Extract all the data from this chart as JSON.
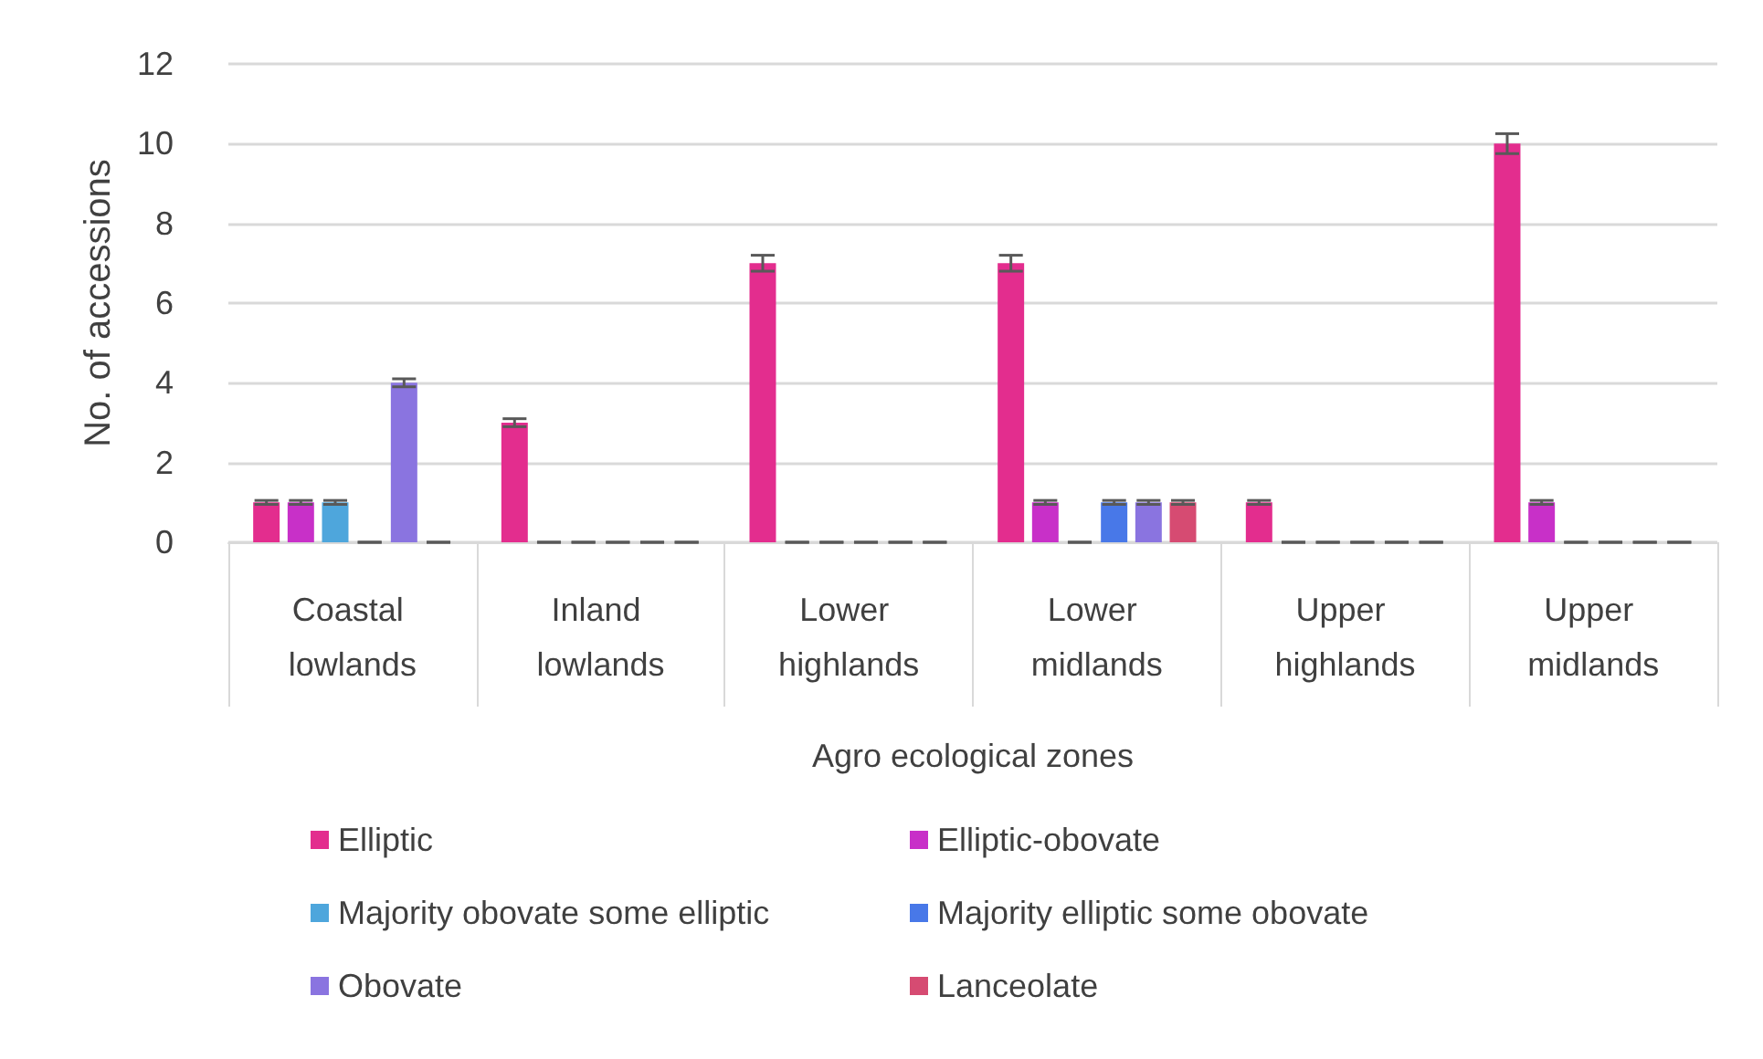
{
  "chart_data": {
    "type": "bar",
    "xlabel": "Agro ecological zones",
    "ylabel": "No. of accessions",
    "categories": [
      "Coastal lowlands",
      "Inland lowlands",
      "Lower highlands",
      "Lower midlands",
      "Upper highlands",
      "Upper midlands"
    ],
    "series": [
      {
        "name": "Elliptic",
        "color": "#e32d8e",
        "values": [
          1,
          3,
          7,
          7,
          1,
          10
        ],
        "errors": [
          0.05,
          0.1,
          0.2,
          0.2,
          0.05,
          0.25
        ]
      },
      {
        "name": "Elliptic-obovate",
        "color": "#c830c8",
        "values": [
          1,
          0,
          0,
          1,
          0,
          1
        ],
        "errors": [
          0.05,
          0,
          0,
          0.05,
          0,
          0.05
        ]
      },
      {
        "name": "Majority obovate some elliptic",
        "color": "#4ea6dc",
        "values": [
          1,
          0,
          0,
          0,
          0,
          0
        ],
        "errors": [
          0.05,
          0,
          0,
          0,
          0,
          0
        ]
      },
      {
        "name": "Majority elliptic some obovate",
        "color": "#4878e8",
        "values": [
          0,
          0,
          0,
          1,
          0,
          0
        ],
        "errors": [
          0,
          0,
          0,
          0.05,
          0,
          0
        ]
      },
      {
        "name": "Obovate",
        "color": "#8a74e0",
        "values": [
          4,
          0,
          0,
          1,
          0,
          0
        ],
        "errors": [
          0.1,
          0,
          0,
          0.05,
          0,
          0
        ]
      },
      {
        "name": "Lanceolate",
        "color": "#d64b72",
        "values": [
          0,
          0,
          0,
          1,
          0,
          0
        ],
        "errors": [
          0,
          0,
          0,
          0.05,
          0,
          0
        ]
      }
    ],
    "ylim": [
      0,
      12
    ],
    "yticks": [
      0,
      2,
      4,
      6,
      8,
      10,
      12
    ],
    "grid": "y",
    "legend": "bottom"
  }
}
